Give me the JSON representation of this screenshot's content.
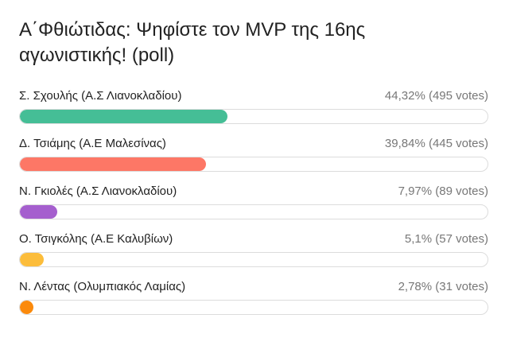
{
  "poll": {
    "title": "Α΄Φθιώτιδας: Ψηφίστε τον MVP της 16ης αγωνιστικής! (poll)",
    "options": [
      {
        "label": "Σ. Σχουλής (Α.Σ Λιανοκλαδίου)",
        "percent": "44,32%",
        "votes": "(495 votes)",
        "fraction": 0.4432,
        "color": "#45be96"
      },
      {
        "label": "Δ. Τσιάμης (Α.Ε Μαλεσίνας)",
        "percent": "39,84%",
        "votes": "(445 votes)",
        "fraction": 0.3984,
        "color": "#fd7766"
      },
      {
        "label": "Ν. Γκιολές (Α.Σ Λιανοκλαδίου)",
        "percent": "7,97%",
        "votes": "(89 votes)",
        "fraction": 0.0797,
        "color": "#a55fce"
      },
      {
        "label": "Ο. Τσιγκόλης (Α.Ε Καλυβίων)",
        "percent": "5,1%",
        "votes": "(57 votes)",
        "fraction": 0.051,
        "color": "#fcbd3b"
      },
      {
        "label": "Ν. Λέντας (Ολυμπιακός Λαμίας)",
        "percent": "2,78%",
        "votes": "(31 votes)",
        "fraction": 0.0278,
        "color": "#fb8a0c"
      }
    ]
  }
}
